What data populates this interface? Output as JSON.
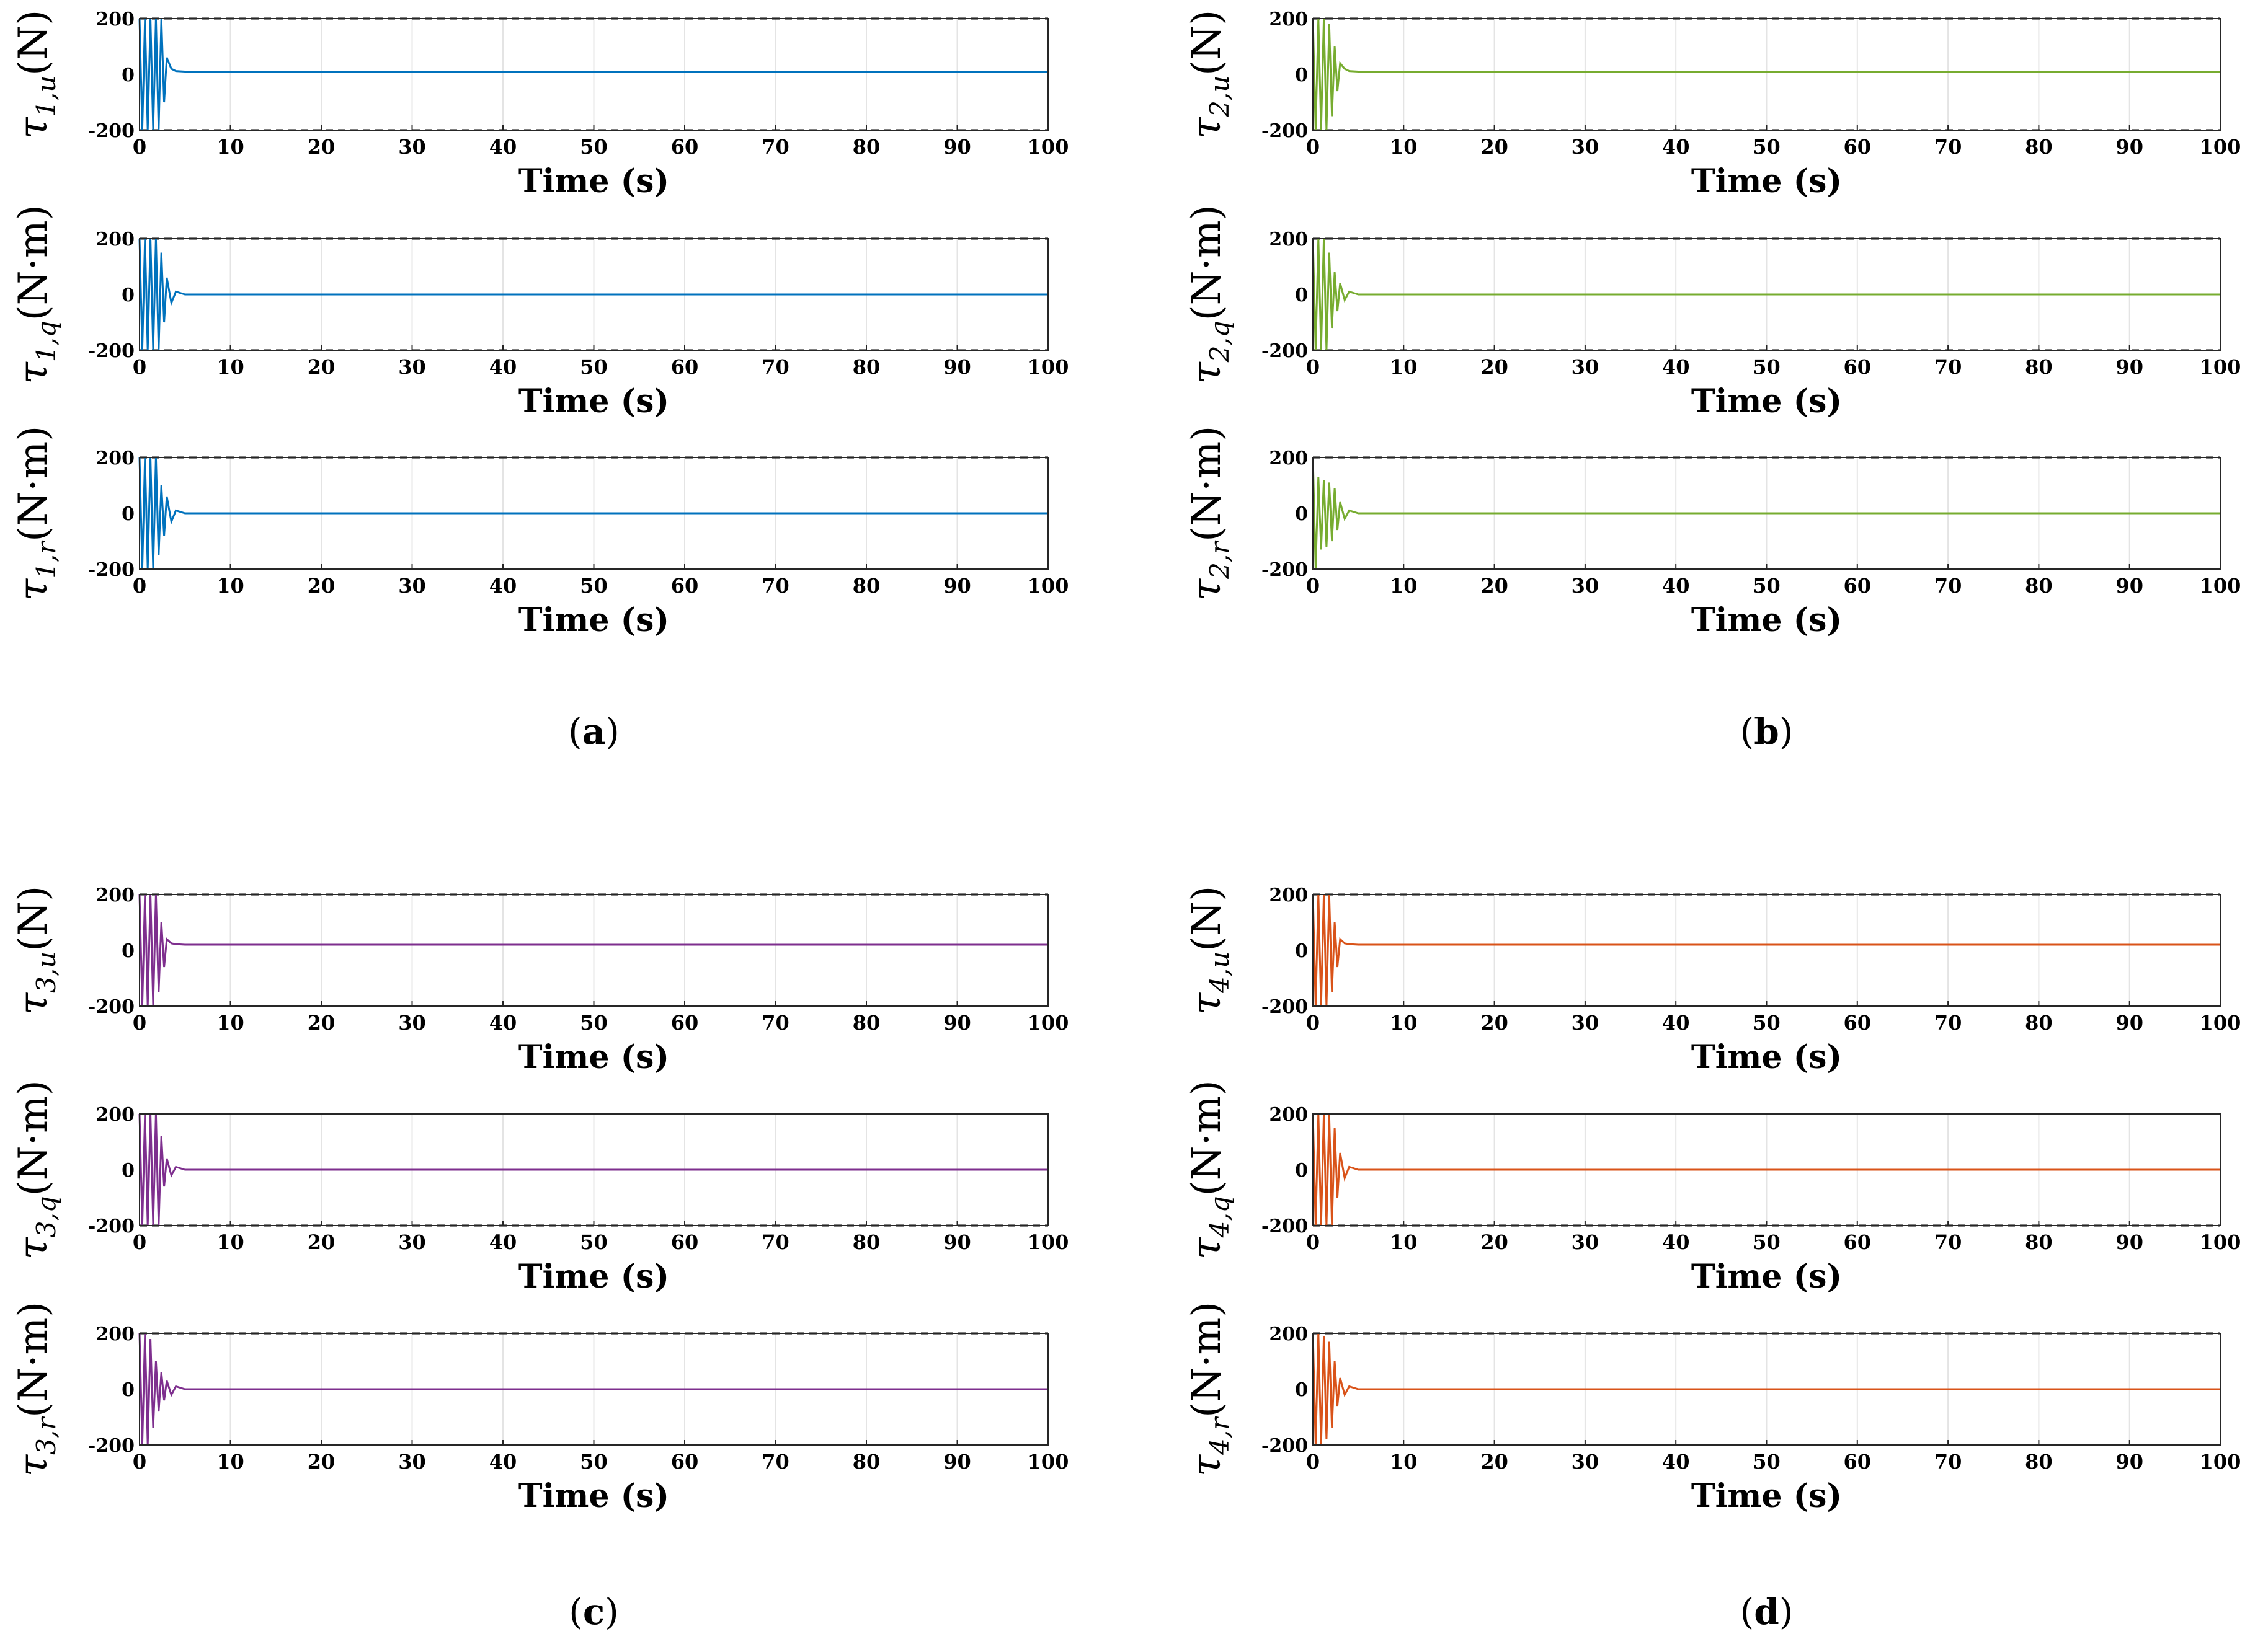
{
  "figure": {
    "panels": [
      {
        "label": "(a)",
        "color": "#0072BD",
        "plots": [
          {
            "sym": "τ",
            "sub": "1,u",
            "unit": "(N)"
          },
          {
            "sym": "τ",
            "sub": "1,q",
            "unit": "(N·m)"
          },
          {
            "sym": "τ",
            "sub": "1,r",
            "unit": "(N·m)"
          }
        ]
      },
      {
        "label": "(b)",
        "color": "#77AC30",
        "plots": [
          {
            "sym": "τ",
            "sub": "2,u",
            "unit": "(N)"
          },
          {
            "sym": "τ",
            "sub": "2,q",
            "unit": "(N·m)"
          },
          {
            "sym": "τ",
            "sub": "2,r",
            "unit": "(N·m)"
          }
        ]
      },
      {
        "label": "(c)",
        "color": "#7E2F8E",
        "plots": [
          {
            "sym": "τ",
            "sub": "3,u",
            "unit": "(N)"
          },
          {
            "sym": "τ",
            "sub": "3,q",
            "unit": "(N·m)"
          },
          {
            "sym": "τ",
            "sub": "3,r",
            "unit": "(N·m)"
          }
        ]
      },
      {
        "label": "(d)",
        "color": "#D95319",
        "plots": [
          {
            "sym": "τ",
            "sub": "4,u",
            "unit": "(N)"
          },
          {
            "sym": "τ",
            "sub": "4,q",
            "unit": "(N·m)"
          },
          {
            "sym": "τ",
            "sub": "4,r",
            "unit": "(N·m)"
          }
        ]
      }
    ]
  },
  "chart_data": {
    "type": "line",
    "xlabel": "Time (s)",
    "xlim": [
      0,
      100
    ],
    "ylim": [
      -200,
      200
    ],
    "xticks": [
      0,
      10,
      20,
      30,
      40,
      50,
      60,
      70,
      80,
      90,
      100
    ],
    "yticks": [
      200,
      0,
      -200
    ],
    "saturation_limits": [
      200,
      -200
    ],
    "grid": true,
    "series": [
      {
        "name": "τ1,u",
        "x": [
          0,
          0.3,
          0.6,
          0.9,
          1.2,
          1.5,
          1.8,
          2.1,
          2.4,
          2.7,
          3.0,
          3.5,
          4.0,
          5.0,
          100
        ],
        "y": [
          200,
          -200,
          200,
          -200,
          200,
          -200,
          200,
          -200,
          200,
          -100,
          60,
          20,
          12,
          10,
          10
        ]
      },
      {
        "name": "τ1,q",
        "x": [
          0,
          0.3,
          0.6,
          0.9,
          1.2,
          1.5,
          1.8,
          2.1,
          2.4,
          2.7,
          3.0,
          3.5,
          4.0,
          5.0,
          100
        ],
        "y": [
          200,
          -200,
          200,
          -200,
          200,
          -200,
          200,
          -200,
          150,
          -100,
          60,
          -30,
          10,
          0,
          0
        ]
      },
      {
        "name": "τ1,r",
        "x": [
          0,
          0.3,
          0.6,
          0.9,
          1.2,
          1.5,
          1.8,
          2.1,
          2.4,
          2.7,
          3.0,
          3.5,
          4.0,
          5.0,
          100
        ],
        "y": [
          200,
          -200,
          200,
          -200,
          200,
          -200,
          200,
          -150,
          100,
          -80,
          60,
          -30,
          10,
          0,
          0
        ]
      },
      {
        "name": "τ2,u",
        "x": [
          0,
          0.3,
          0.6,
          0.9,
          1.2,
          1.5,
          1.8,
          2.1,
          2.4,
          2.7,
          3.0,
          3.5,
          4.0,
          5.0,
          100
        ],
        "y": [
          200,
          -200,
          200,
          -200,
          200,
          -200,
          180,
          -150,
          100,
          -60,
          40,
          20,
          12,
          10,
          10
        ]
      },
      {
        "name": "τ2,q",
        "x": [
          0,
          0.3,
          0.6,
          0.9,
          1.2,
          1.5,
          1.8,
          2.1,
          2.4,
          2.7,
          3.0,
          3.5,
          4.0,
          5.0,
          100
        ],
        "y": [
          200,
          -200,
          200,
          -200,
          200,
          -200,
          150,
          -120,
          80,
          -60,
          40,
          -20,
          10,
          0,
          0
        ]
      },
      {
        "name": "τ2,r",
        "x": [
          0,
          0.3,
          0.6,
          0.9,
          1.2,
          1.5,
          1.8,
          2.1,
          2.4,
          2.7,
          3.0,
          3.5,
          4.0,
          5.0,
          100
        ],
        "y": [
          200,
          -200,
          130,
          -130,
          120,
          -120,
          110,
          -100,
          90,
          -60,
          40,
          -20,
          10,
          0,
          0
        ]
      },
      {
        "name": "τ3,u",
        "x": [
          0,
          0.3,
          0.6,
          0.9,
          1.2,
          1.5,
          1.8,
          2.1,
          2.4,
          2.7,
          3.0,
          3.5,
          4.0,
          5.0,
          100
        ],
        "y": [
          200,
          -200,
          200,
          -200,
          200,
          -200,
          200,
          -150,
          100,
          -60,
          40,
          25,
          22,
          20,
          20
        ]
      },
      {
        "name": "τ3,q",
        "x": [
          0,
          0.3,
          0.6,
          0.9,
          1.2,
          1.5,
          1.8,
          2.1,
          2.4,
          2.7,
          3.0,
          3.5,
          4.0,
          5.0,
          100
        ],
        "y": [
          200,
          -200,
          200,
          -200,
          200,
          -200,
          200,
          -200,
          120,
          -60,
          40,
          -20,
          10,
          0,
          0
        ]
      },
      {
        "name": "τ3,r",
        "x": [
          0,
          0.3,
          0.6,
          0.9,
          1.2,
          1.5,
          1.8,
          2.1,
          2.4,
          2.7,
          3.0,
          3.5,
          4.0,
          5.0,
          100
        ],
        "y": [
          200,
          -200,
          200,
          -200,
          180,
          -140,
          100,
          -80,
          60,
          -40,
          30,
          -20,
          10,
          0,
          0
        ]
      },
      {
        "name": "τ4,u",
        "x": [
          0,
          0.3,
          0.6,
          0.9,
          1.2,
          1.5,
          1.8,
          2.1,
          2.4,
          2.7,
          3.0,
          3.5,
          4.0,
          5.0,
          100
        ],
        "y": [
          200,
          -200,
          200,
          -200,
          200,
          -200,
          200,
          -150,
          100,
          -60,
          40,
          25,
          22,
          20,
          20
        ]
      },
      {
        "name": "τ4,q",
        "x": [
          0,
          0.3,
          0.6,
          0.9,
          1.2,
          1.5,
          1.8,
          2.1,
          2.4,
          2.7,
          3.0,
          3.5,
          4.0,
          5.0,
          100
        ],
        "y": [
          200,
          -200,
          200,
          -200,
          200,
          -200,
          200,
          -200,
          150,
          -100,
          60,
          -30,
          10,
          0,
          0
        ]
      },
      {
        "name": "τ4,r",
        "x": [
          0,
          0.3,
          0.6,
          0.9,
          1.2,
          1.5,
          1.8,
          2.1,
          2.4,
          2.7,
          3.0,
          3.5,
          4.0,
          5.0,
          100
        ],
        "y": [
          200,
          -200,
          200,
          -200,
          190,
          -180,
          170,
          -140,
          100,
          -60,
          40,
          -20,
          10,
          0,
          0
        ]
      }
    ]
  }
}
